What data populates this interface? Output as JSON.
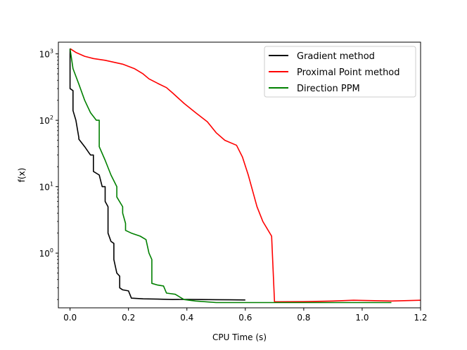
{
  "chart_data": {
    "type": "line",
    "title": "",
    "xlabel": "CPU Time (s)",
    "ylabel": "f(x)",
    "xlim": [
      -0.04,
      1.2
    ],
    "ylim": [
      0.15,
      1500
    ],
    "yscale": "log",
    "grid": false,
    "legend_position": "top-right",
    "x_ticks": [
      0.0,
      0.2,
      0.4,
      0.6,
      0.8,
      1.0,
      1.2
    ],
    "x_tick_labels": [
      "0.0",
      "0.2",
      "0.4",
      "0.6",
      "0.8",
      "1.0",
      "1.2"
    ],
    "y_ticks": [
      1,
      10,
      100,
      1000
    ],
    "y_tick_labels": [
      {
        "base": "10",
        "exp": "0"
      },
      {
        "base": "10",
        "exp": "1"
      },
      {
        "base": "10",
        "exp": "2"
      },
      {
        "base": "10",
        "exp": "3"
      }
    ],
    "series": [
      {
        "name": "Gradient method",
        "color": "#000000",
        "x": [
          0.0,
          0.0,
          0.01,
          0.01,
          0.02,
          0.03,
          0.03,
          0.05,
          0.07,
          0.08,
          0.08,
          0.1,
          0.11,
          0.12,
          0.12,
          0.13,
          0.13,
          0.14,
          0.15,
          0.15,
          0.16,
          0.17,
          0.17,
          0.18,
          0.2,
          0.21,
          0.25,
          0.3,
          0.35,
          0.4,
          0.45,
          0.5,
          0.55,
          0.6
        ],
        "y": [
          1200,
          300,
          280,
          140,
          100,
          55,
          52,
          40,
          30,
          30,
          17,
          15,
          10,
          10,
          6,
          5,
          2,
          1.5,
          1.4,
          0.8,
          0.5,
          0.45,
          0.3,
          0.28,
          0.27,
          0.21,
          0.205,
          0.203,
          0.2,
          0.201,
          0.2,
          0.199,
          0.198,
          0.197
        ]
      },
      {
        "name": "Proximal Point method",
        "color": "#ff0000",
        "x": [
          0.0,
          0.02,
          0.05,
          0.08,
          0.12,
          0.18,
          0.22,
          0.25,
          0.27,
          0.3,
          0.33,
          0.35,
          0.39,
          0.43,
          0.47,
          0.5,
          0.53,
          0.57,
          0.59,
          0.61,
          0.64,
          0.66,
          0.69,
          0.7,
          0.8,
          0.9,
          0.97,
          1.1,
          1.2
        ],
        "y": [
          1200,
          1050,
          920,
          850,
          800,
          700,
          600,
          500,
          420,
          360,
          310,
          260,
          180,
          130,
          95,
          65,
          50,
          42,
          28,
          15,
          5,
          3,
          1.8,
          0.185,
          0.186,
          0.19,
          0.195,
          0.19,
          0.195
        ]
      },
      {
        "name": "Direction PPM",
        "color": "#008000",
        "x": [
          0.0,
          0.01,
          0.03,
          0.05,
          0.07,
          0.09,
          0.1,
          0.1,
          0.12,
          0.14,
          0.16,
          0.16,
          0.18,
          0.18,
          0.19,
          0.19,
          0.21,
          0.24,
          0.26,
          0.27,
          0.28,
          0.28,
          0.3,
          0.32,
          0.33,
          0.36,
          0.39,
          0.43,
          0.5,
          0.6,
          0.8,
          1.0,
          1.1
        ],
        "y": [
          1200,
          600,
          350,
          200,
          130,
          100,
          100,
          40,
          25,
          15,
          10,
          7,
          5,
          4,
          2.8,
          2.2,
          2.0,
          1.8,
          1.6,
          1.0,
          0.8,
          0.35,
          0.33,
          0.32,
          0.25,
          0.24,
          0.2,
          0.19,
          0.18,
          0.18,
          0.18,
          0.18,
          0.18
        ]
      }
    ]
  }
}
